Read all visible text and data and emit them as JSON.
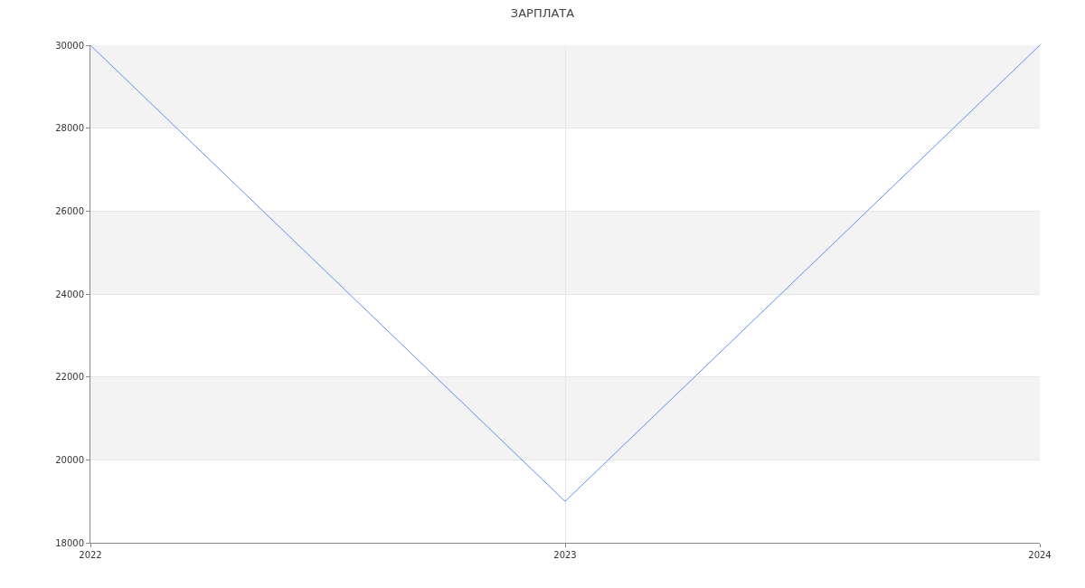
{
  "chart_data": {
    "type": "line",
    "title": "ЗАРПЛАТА",
    "x": [
      2022,
      2023,
      2024
    ],
    "series": [
      {
        "color": "#5b8ff9",
        "values": [
          30000,
          19000,
          30000
        ]
      }
    ],
    "xlim": [
      2022,
      2024
    ],
    "xticks": [
      2022,
      2023,
      2024
    ],
    "ylim": [
      18000,
      30000
    ],
    "yticks": [
      18000,
      20000,
      22000,
      24000,
      26000,
      28000,
      30000
    ],
    "bands": [
      {
        "axis": "y",
        "from": 20000,
        "to": 22000,
        "color": "#f3f3f3"
      },
      {
        "axis": "y",
        "from": 24000,
        "to": 26000,
        "color": "#f3f3f3"
      },
      {
        "axis": "y",
        "from": 28000,
        "to": 30000,
        "color": "#f3f3f3"
      }
    ],
    "grid": true,
    "marker": "none",
    "line_style": "solid"
  }
}
